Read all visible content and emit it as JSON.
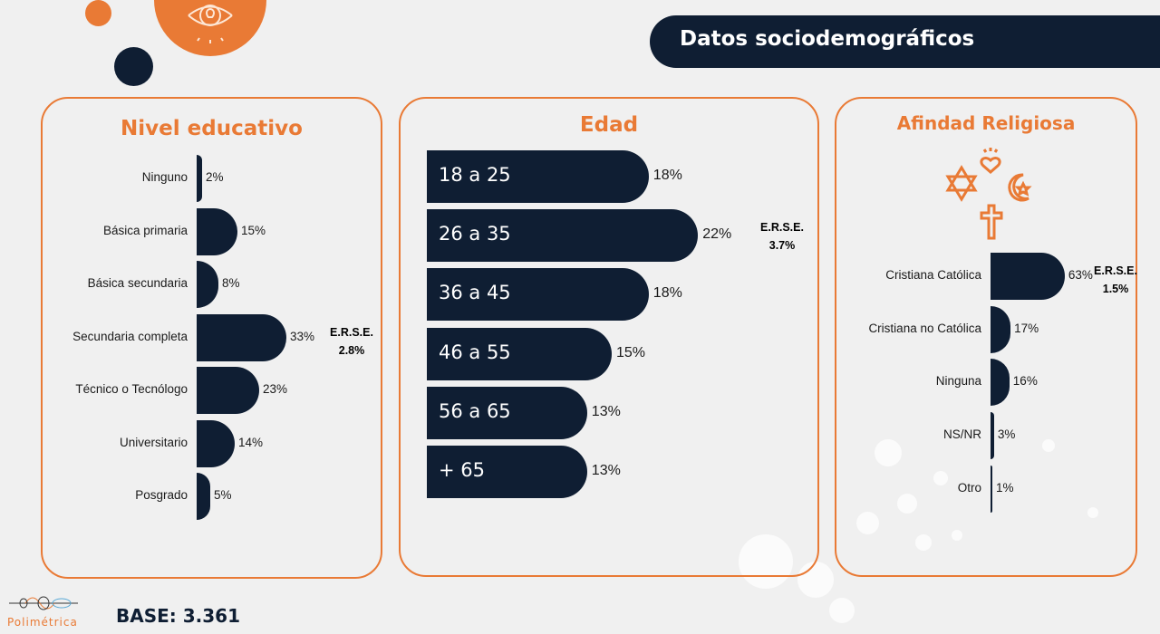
{
  "header": {
    "title": "Datos sociodemográficos"
  },
  "footer": {
    "base": "BASE: 3.361",
    "logo_text": "Polimétrica"
  },
  "colors": {
    "accent": "#e97a35",
    "navy": "#0f1e33",
    "background": "#f0f0f0"
  },
  "chart_data": [
    {
      "type": "bar",
      "orientation": "horizontal",
      "title": "Nivel educativo",
      "categories": [
        "Ninguno",
        "Básica primaria",
        "Básica secundaria",
        "Secundaria completa",
        "Técnico o Tecnólogo",
        "Universitario",
        "Posgrado"
      ],
      "values": [
        2,
        15,
        8,
        33,
        23,
        14,
        5
      ],
      "value_labels": [
        "2%",
        "15%",
        "8%",
        "33%",
        "23%",
        "14%",
        "5%"
      ],
      "erse_label": "E.R.S.E.",
      "erse_value": "2.8%"
    },
    {
      "type": "bar",
      "orientation": "horizontal",
      "title": "Edad",
      "categories": [
        "18 a 25",
        "26 a 35",
        "36 a 45",
        "46 a 55",
        "56 a 65",
        "+ 65"
      ],
      "values": [
        18,
        22,
        18,
        15,
        13,
        13
      ],
      "value_labels": [
        "18%",
        "22%",
        "18%",
        "15%",
        "13%",
        "13%"
      ],
      "erse_label": "E.R.S.E.",
      "erse_value": "3.7%"
    },
    {
      "type": "bar",
      "orientation": "horizontal",
      "title": "Afindad Religiosa",
      "categories": [
        "Cristiana Católica",
        "Cristiana no Católica",
        "Ninguna",
        "NS/NR",
        "Otro"
      ],
      "values": [
        63,
        17,
        16,
        3,
        1
      ],
      "value_labels": [
        "63%",
        "17%",
        "16%",
        "3%",
        "1%"
      ],
      "erse_label": "E.R.S.E.",
      "erse_value": "1.5%"
    }
  ]
}
